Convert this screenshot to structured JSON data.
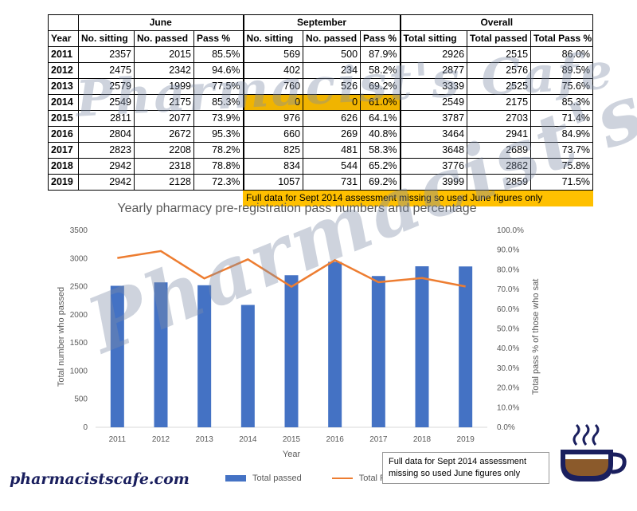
{
  "table": {
    "group_headers": [
      "June",
      "September",
      "Overall"
    ],
    "col_headers": [
      "Year",
      "No. sitting",
      "No. passed",
      "Pass %",
      "No. sitting",
      "No. passed",
      "Pass %",
      "Total sitting",
      "Total passed",
      "Total Pass %"
    ],
    "rows": [
      [
        "2011",
        "2357",
        "2015",
        "85.5%",
        "569",
        "500",
        "87.9%",
        "2926",
        "2515",
        "86.0%"
      ],
      [
        "2012",
        "2475",
        "2342",
        "94.6%",
        "402",
        "234",
        "58.2%",
        "2877",
        "2576",
        "89.5%"
      ],
      [
        "2013",
        "2579",
        "1999",
        "77.5%",
        "760",
        "526",
        "69.2%",
        "3339",
        "2525",
        "75.6%"
      ],
      [
        "2014",
        "2549",
        "2175",
        "85.3%",
        "0",
        "0",
        "61.0%",
        "2549",
        "2175",
        "85.3%"
      ],
      [
        "2015",
        "2811",
        "2077",
        "73.9%",
        "976",
        "626",
        "64.1%",
        "3787",
        "2703",
        "71.4%"
      ],
      [
        "2016",
        "2804",
        "2672",
        "95.3%",
        "660",
        "269",
        "40.8%",
        "3464",
        "2941",
        "84.9%"
      ],
      [
        "2017",
        "2823",
        "2208",
        "78.2%",
        "825",
        "481",
        "58.3%",
        "3648",
        "2689",
        "73.7%"
      ],
      [
        "2018",
        "2942",
        "2318",
        "78.8%",
        "834",
        "544",
        "65.2%",
        "3776",
        "2862",
        "75.8%"
      ],
      [
        "2019",
        "2942",
        "2128",
        "72.3%",
        "1057",
        "731",
        "69.2%",
        "3999",
        "2859",
        "71.5%"
      ]
    ],
    "note": "Full data for Sept 2014 assessment missing so used June figures only",
    "highlight_color": "#ffc000"
  },
  "chart_data": {
    "type": "bar",
    "title": "Yearly pharmacy pre-registration pass numbers and percentage",
    "xlabel": "Year",
    "ylabel": "Total number who passed",
    "y2label": "Total pass % of those who sat",
    "categories": [
      "2011",
      "2012",
      "2013",
      "2014",
      "2015",
      "2016",
      "2017",
      "2018",
      "2019"
    ],
    "ylim": [
      0,
      3500
    ],
    "yticks": [
      "0",
      "500",
      "1000",
      "1500",
      "2000",
      "2500",
      "3000",
      "3500"
    ],
    "y2lim": [
      0,
      100
    ],
    "y2ticks": [
      "0.0%",
      "10.0%",
      "20.0%",
      "30.0%",
      "40.0%",
      "50.0%",
      "60.0%",
      "70.0%",
      "80.0%",
      "90.0%",
      "100.0%"
    ],
    "series": [
      {
        "name": "Total passed",
        "type": "bar",
        "axis": "left",
        "color": "#4472c4",
        "values": [
          2515,
          2576,
          2525,
          2175,
          2703,
          2941,
          2689,
          2862,
          2859
        ]
      },
      {
        "name": "Total Pass %",
        "type": "line",
        "axis": "right",
        "color": "#ed7d31",
        "values": [
          86.0,
          89.5,
          75.6,
          85.3,
          71.4,
          84.9,
          73.7,
          75.8,
          71.5
        ]
      }
    ],
    "annotation": "Full data for Sept 2014 assessment missing so used June figures only",
    "legend": "bottom",
    "grid": false
  },
  "branding": {
    "watermark": "Pharmacist's Cafe",
    "site": "pharmacistscafe.com",
    "cup_icon": "coffee-cup-icon"
  }
}
